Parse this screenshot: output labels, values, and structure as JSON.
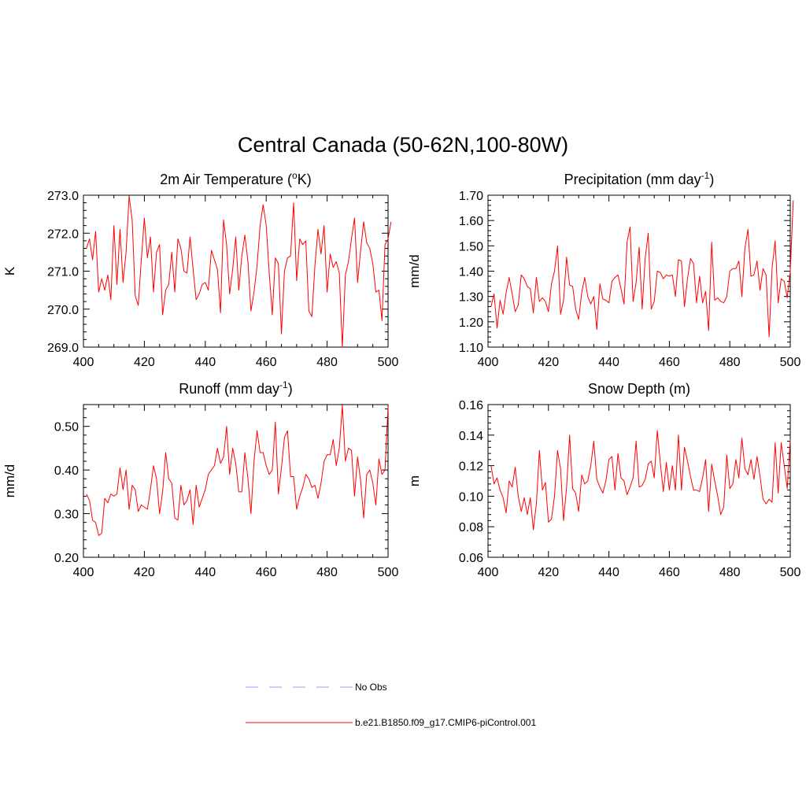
{
  "page": {
    "title": "Central Canada (50-62N,100-80W)"
  },
  "legend": {
    "items": [
      {
        "label": "No Obs",
        "color": "#9999ff",
        "style": "dashed"
      },
      {
        "label": "b.e21.B1850.f09_g17.CMIP6-piControl.001",
        "color": "#ff0000",
        "style": "solid"
      }
    ]
  },
  "chart_data": [
    {
      "type": "line",
      "title": "2m Air Temperature (",
      "title_sup": "o",
      "title_after": "K)",
      "xlabel": "",
      "ylabel": "K",
      "xlim": [
        400,
        500
      ],
      "ylim": [
        269.0,
        273.0
      ],
      "x_ticks": [
        400,
        420,
        440,
        460,
        480,
        500
      ],
      "y_ticks": [
        269.0,
        270.0,
        271.0,
        272.0,
        273.0
      ],
      "y_tick_labels": [
        "269.0",
        "270.0",
        "271.0",
        "272.0",
        "273.0"
      ],
      "x_start": 401,
      "series": [
        {
          "name": "b.e21.B1850.f09_g17.CMIP6-piControl.001",
          "color": "#ff0000",
          "values": [
            271.6,
            271.85,
            271.3,
            272.05,
            270.45,
            270.8,
            270.5,
            270.9,
            270.25,
            272.2,
            270.65,
            272.1,
            270.7,
            271.5,
            272.98,
            272.35,
            270.35,
            270.1,
            271.3,
            272.4,
            271.35,
            271.9,
            270.45,
            271.5,
            271.7,
            269.85,
            270.5,
            270.65,
            271.5,
            270.45,
            271.85,
            271.6,
            271.0,
            270.95,
            271.9,
            271.05,
            270.25,
            270.4,
            270.65,
            270.7,
            270.5,
            271.55,
            271.3,
            271.05,
            269.9,
            272.35,
            271.7,
            270.4,
            271.05,
            271.9,
            270.5,
            271.4,
            271.95,
            271.25,
            269.95,
            270.45,
            271.15,
            272.2,
            272.75,
            272.2,
            270.95,
            269.85,
            271.35,
            271.2,
            269.35,
            271.0,
            271.35,
            271.4,
            272.8,
            270.75,
            271.85,
            271.7,
            271.8,
            269.95,
            269.8,
            271.15,
            272.1,
            271.45,
            272.2,
            270.45,
            271.45,
            271.1,
            271.25,
            270.95,
            269.0,
            270.9,
            271.25,
            271.85,
            272.4,
            270.7,
            271.55,
            272.3,
            271.75,
            271.6,
            271.2,
            270.45,
            270.5,
            269.7,
            271.7,
            271.85,
            272.3
          ]
        }
      ]
    },
    {
      "type": "line",
      "title": "Precipitation (mm day",
      "title_sup": "-1",
      "title_after": ")",
      "xlabel": "",
      "ylabel": "mm/d",
      "xlim": [
        400,
        500
      ],
      "ylim": [
        1.1,
        1.7
      ],
      "x_ticks": [
        400,
        420,
        440,
        460,
        480,
        500
      ],
      "y_ticks": [
        1.1,
        1.2,
        1.3,
        1.4,
        1.5,
        1.6,
        1.7
      ],
      "y_tick_labels": [
        "1.10",
        "1.20",
        "1.30",
        "1.40",
        "1.50",
        "1.60",
        "1.70"
      ],
      "x_start": 401,
      "series": [
        {
          "name": "b.e21.B1850.f09_g17.CMIP6-piControl.001",
          "color": "#ff0000",
          "values": [
            1.26,
            1.31,
            1.175,
            1.285,
            1.23,
            1.315,
            1.375,
            1.31,
            1.24,
            1.265,
            1.385,
            1.37,
            1.34,
            1.33,
            1.235,
            1.375,
            1.28,
            1.295,
            1.28,
            1.24,
            1.35,
            1.4,
            1.5,
            1.23,
            1.285,
            1.455,
            1.345,
            1.34,
            1.25,
            1.21,
            1.315,
            1.375,
            1.3,
            1.27,
            1.3,
            1.17,
            1.35,
            1.29,
            1.285,
            1.275,
            1.36,
            1.375,
            1.385,
            1.33,
            1.27,
            1.515,
            1.575,
            1.28,
            1.355,
            1.495,
            1.25,
            1.45,
            1.55,
            1.25,
            1.28,
            1.4,
            1.395,
            1.37,
            1.385,
            1.38,
            1.385,
            1.3,
            1.445,
            1.44,
            1.26,
            1.37,
            1.45,
            1.43,
            1.275,
            1.38,
            1.275,
            1.32,
            1.165,
            1.515,
            1.285,
            1.295,
            1.28,
            1.275,
            1.3,
            1.4,
            1.41,
            1.41,
            1.44,
            1.3,
            1.49,
            1.565,
            1.38,
            1.385,
            1.44,
            1.325,
            1.41,
            1.385,
            1.14,
            1.415,
            1.52,
            1.275,
            1.37,
            1.36,
            1.295,
            1.4,
            1.68
          ]
        }
      ]
    },
    {
      "type": "line",
      "title": "Runoff (mm day",
      "title_sup": "-1",
      "title_after": ")",
      "xlabel": "",
      "ylabel": "mm/d",
      "xlim": [
        400,
        500
      ],
      "ylim": [
        0.2,
        0.55
      ],
      "x_ticks": [
        400,
        420,
        440,
        460,
        480,
        500
      ],
      "y_ticks": [
        0.2,
        0.3,
        0.4,
        0.5
      ],
      "y_tick_labels": [
        "0.20",
        "0.30",
        "0.40",
        "0.50"
      ],
      "x_start": 401,
      "series": [
        {
          "name": "b.e21.B1850.f09_g17.CMIP6-piControl.001",
          "color": "#ff0000",
          "values": [
            0.345,
            0.33,
            0.285,
            0.28,
            0.25,
            0.255,
            0.335,
            0.325,
            0.345,
            0.34,
            0.345,
            0.405,
            0.355,
            0.4,
            0.31,
            0.365,
            0.355,
            0.305,
            0.32,
            0.315,
            0.31,
            0.355,
            0.41,
            0.38,
            0.3,
            0.35,
            0.44,
            0.38,
            0.37,
            0.29,
            0.285,
            0.365,
            0.32,
            0.33,
            0.355,
            0.275,
            0.365,
            0.315,
            0.335,
            0.355,
            0.39,
            0.4,
            0.41,
            0.45,
            0.415,
            0.43,
            0.5,
            0.39,
            0.45,
            0.415,
            0.35,
            0.35,
            0.44,
            0.38,
            0.3,
            0.42,
            0.49,
            0.44,
            0.44,
            0.41,
            0.39,
            0.4,
            0.51,
            0.345,
            0.405,
            0.475,
            0.49,
            0.385,
            0.385,
            0.31,
            0.34,
            0.36,
            0.39,
            0.38,
            0.36,
            0.365,
            0.335,
            0.37,
            0.42,
            0.435,
            0.435,
            0.47,
            0.41,
            0.45,
            0.548,
            0.42,
            0.45,
            0.445,
            0.34,
            0.43,
            0.375,
            0.29,
            0.39,
            0.4,
            0.37,
            0.32,
            0.425,
            0.39,
            0.4,
            0.545
          ]
        }
      ]
    },
    {
      "type": "line",
      "title": "Snow Depth (m)",
      "title_sup": "",
      "title_after": "",
      "xlabel": "",
      "ylabel": "m",
      "xlim": [
        400,
        500
      ],
      "ylim": [
        0.06,
        0.16
      ],
      "x_ticks": [
        400,
        420,
        440,
        460,
        480,
        500
      ],
      "y_ticks": [
        0.06,
        0.08,
        0.1,
        0.12,
        0.14,
        0.16
      ],
      "y_tick_labels": [
        "0.06",
        "0.08",
        "0.10",
        "0.12",
        "0.14",
        "0.16"
      ],
      "x_start": 401,
      "series": [
        {
          "name": "b.e21.B1850.f09_g17.CMIP6-piControl.001",
          "color": "#ff0000",
          "values": [
            0.12,
            0.108,
            0.112,
            0.104,
            0.099,
            0.089,
            0.11,
            0.106,
            0.119,
            0.1,
            0.09,
            0.099,
            0.088,
            0.099,
            0.078,
            0.095,
            0.13,
            0.104,
            0.109,
            0.083,
            0.085,
            0.1,
            0.13,
            0.118,
            0.084,
            0.106,
            0.14,
            0.105,
            0.102,
            0.09,
            0.114,
            0.108,
            0.11,
            0.12,
            0.136,
            0.111,
            0.106,
            0.102,
            0.11,
            0.124,
            0.126,
            0.104,
            0.128,
            0.112,
            0.11,
            0.101,
            0.106,
            0.112,
            0.136,
            0.106,
            0.107,
            0.111,
            0.121,
            0.123,
            0.112,
            0.143,
            0.122,
            0.103,
            0.122,
            0.104,
            0.12,
            0.104,
            0.14,
            0.104,
            0.132,
            0.123,
            0.113,
            0.104,
            0.104,
            0.103,
            0.112,
            0.124,
            0.09,
            0.121,
            0.11,
            0.1,
            0.088,
            0.093,
            0.127,
            0.105,
            0.108,
            0.124,
            0.112,
            0.138,
            0.118,
            0.114,
            0.124,
            0.111,
            0.126,
            0.113,
            0.098,
            0.095,
            0.098,
            0.096,
            0.135,
            0.102,
            0.135,
            0.12,
            0.105,
            0.137
          ]
        }
      ]
    }
  ]
}
